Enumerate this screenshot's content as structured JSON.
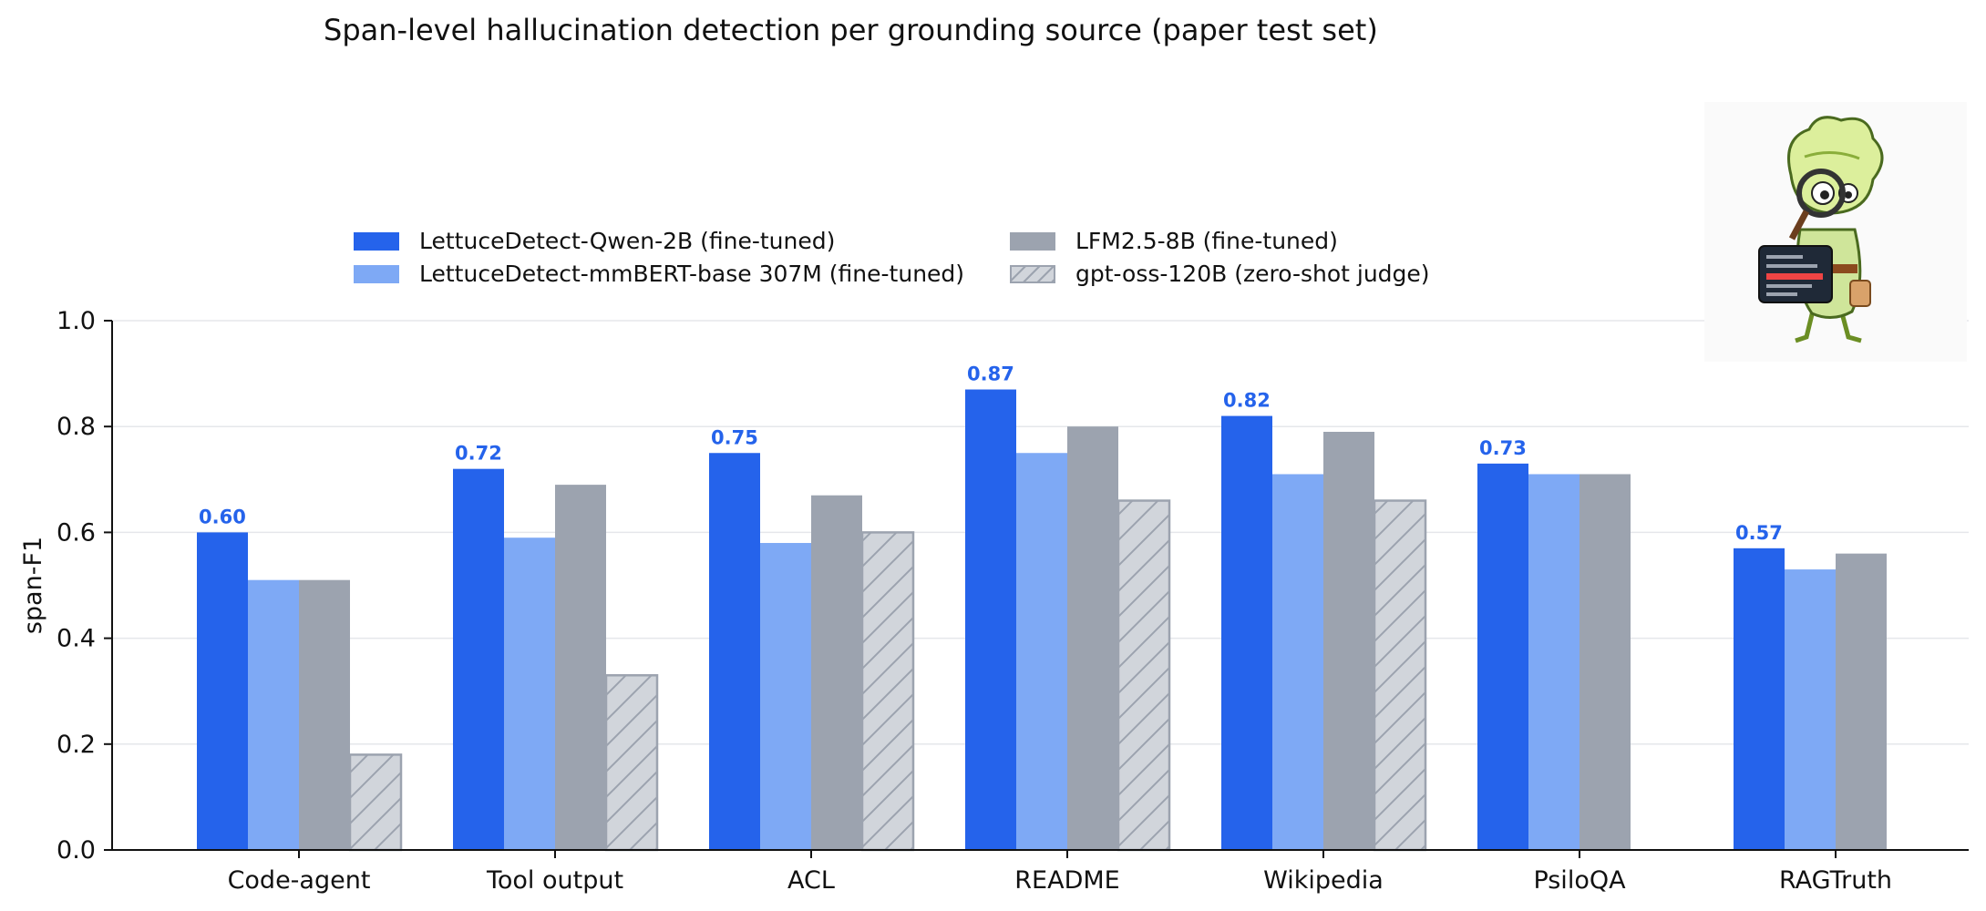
{
  "chart_data": {
    "type": "bar",
    "title": "Span-level hallucination detection per grounding source (paper test set)",
    "xlabel": "",
    "ylabel": "span-F1",
    "ylim": [
      0,
      1.0
    ],
    "yticks": [
      "0.0",
      "0.2",
      "0.4",
      "0.6",
      "0.8",
      "1.0"
    ],
    "grid": "horizontal",
    "legend_position": "top",
    "categories": [
      "Code-agent",
      "Tool output",
      "ACL",
      "README",
      "Wikipedia",
      "PsiloQA",
      "RAGTruth"
    ],
    "series": [
      {
        "name": "LettuceDetect-Qwen-2B (fine-tuned)",
        "color": "#2563eb",
        "values": [
          0.6,
          0.72,
          0.75,
          0.87,
          0.82,
          0.73,
          0.57
        ],
        "labels": [
          "0.60",
          "0.72",
          "0.75",
          "0.87",
          "0.82",
          "0.73",
          "0.57"
        ]
      },
      {
        "name": "LettuceDetect-mmBERT-base 307M (fine-tuned)",
        "color": "#7ea9f5",
        "values": [
          0.51,
          0.59,
          0.58,
          0.75,
          0.71,
          0.71,
          0.53
        ]
      },
      {
        "name": "LFM2.5-8B (fine-tuned)",
        "color": "#9ca3af",
        "values": [
          0.51,
          0.69,
          0.67,
          0.8,
          0.79,
          0.71,
          0.56
        ]
      },
      {
        "name": "gpt-oss-120B (zero-shot judge)",
        "color": "#d1d5db",
        "pattern": "hatched",
        "values": [
          0.18,
          0.33,
          0.6,
          0.66,
          0.66,
          null,
          null
        ]
      }
    ],
    "annotation_color": "#2563eb"
  },
  "mascot": {
    "icon": "lettuce-detective-mascot"
  }
}
